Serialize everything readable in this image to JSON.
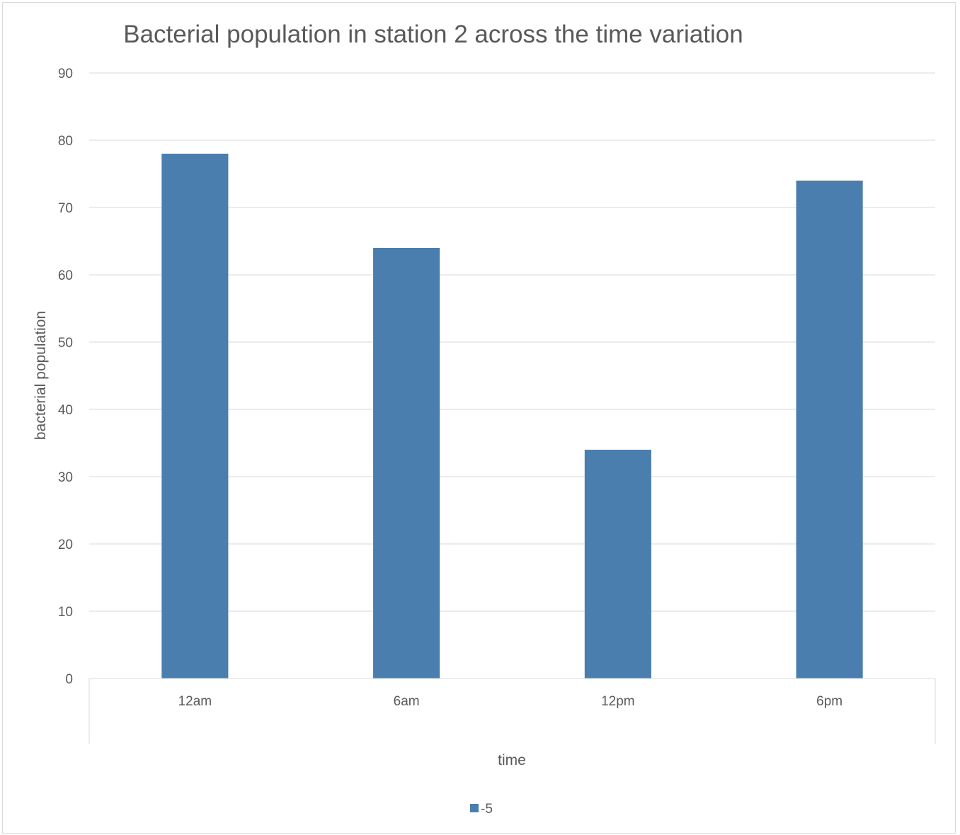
{
  "chart_data": {
    "type": "bar",
    "title": "Bacterial population in station 2 across the time variation",
    "xlabel": "time",
    "ylabel": "bacterial population",
    "categories": [
      "12am",
      "6am",
      "12pm",
      "6pm"
    ],
    "series": [
      {
        "name": "-5",
        "values": [
          78,
          64,
          34,
          74
        ],
        "color": "#4a7eaf"
      }
    ],
    "ylim": [
      0,
      90
    ],
    "yticks": [
      0,
      10,
      20,
      30,
      40,
      50,
      60,
      70,
      80,
      90
    ],
    "grid": true,
    "legend_position": "bottom"
  }
}
